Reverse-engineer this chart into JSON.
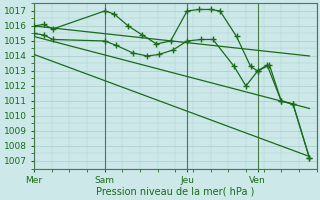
{
  "bg_color": "#cce8e8",
  "grid_color": "#aacccc",
  "line_color": "#1a6b1a",
  "spine_color": "#4a7a4a",
  "ylim": [
    1006.5,
    1017.5
  ],
  "yticks": [
    1007,
    1008,
    1009,
    1010,
    1011,
    1012,
    1013,
    1014,
    1015,
    1016,
    1017
  ],
  "xlabel": "Pression niveau de la mer( hPa )",
  "day_labels": [
    "Mer",
    "Sam",
    "Jeu",
    "Ven"
  ],
  "day_positions": [
    0.0,
    3.0,
    6.5,
    9.5
  ],
  "xlim": [
    0,
    12.0
  ],
  "vline_positions": [
    0.0,
    3.0,
    6.5,
    9.5
  ],
  "series1_x": [
    0.0,
    0.4,
    0.8,
    3.0,
    3.4,
    4.0,
    4.6,
    5.2,
    5.8,
    6.5,
    7.0,
    7.5,
    7.9,
    8.6,
    9.2,
    9.5,
    9.9,
    10.5,
    11.0,
    11.7
  ],
  "series1_y": [
    1016.0,
    1016.1,
    1015.8,
    1017.0,
    1016.8,
    1016.0,
    1015.4,
    1014.8,
    1015.0,
    1017.0,
    1017.1,
    1017.1,
    1017.0,
    1015.3,
    1013.3,
    1013.0,
    1013.4,
    1011.0,
    1010.8,
    1007.2
  ],
  "series2_x": [
    0.0,
    0.4,
    0.8,
    3.0,
    3.5,
    4.2,
    4.8,
    5.3,
    5.9,
    6.5,
    7.1,
    7.6,
    8.5,
    9.0,
    9.5,
    10.0,
    10.5,
    11.0,
    11.7
  ],
  "series2_y": [
    1015.5,
    1015.4,
    1015.1,
    1015.0,
    1014.7,
    1014.2,
    1014.0,
    1014.1,
    1014.4,
    1015.0,
    1015.1,
    1015.1,
    1013.3,
    1012.0,
    1013.0,
    1013.4,
    1011.0,
    1010.8,
    1007.2
  ],
  "trend1_x": [
    0.0,
    11.7
  ],
  "trend1_y": [
    1016.0,
    1014.0
  ],
  "trend2_x": [
    0.0,
    11.7
  ],
  "trend2_y": [
    1015.3,
    1010.5
  ],
  "trend3_x": [
    0.0,
    11.7
  ],
  "trend3_y": [
    1014.1,
    1007.3
  ]
}
